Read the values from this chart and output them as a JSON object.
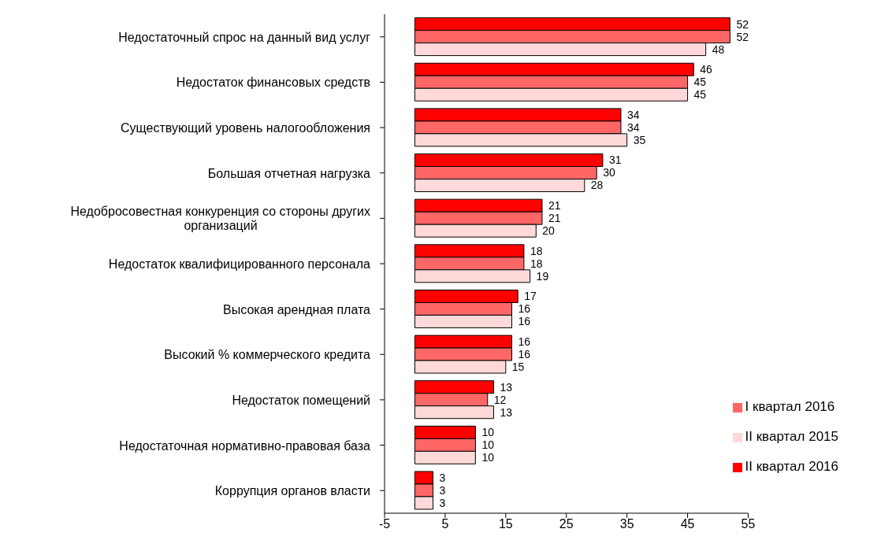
{
  "chart_data": {
    "type": "bar",
    "orientation": "horizontal",
    "categories": [
      "Недостаточный  спрос на данный вид услуг",
      "Недостаток финансовых средств",
      "Существующий уровень налогообложения",
      "Большая отчетная нагрузка",
      "Недобросовестная конкуренция со стороны других организаций",
      "Недостаток квалифицированного персонала",
      "Высокая арендная плата",
      "Высокий  % коммерческого кредита",
      "Недостаток   помещений",
      "Недостаточная нормативно-правовая база",
      "Коррупция органов власти"
    ],
    "series": [
      {
        "name": "II квартал 2016",
        "color": "#ff0000",
        "values": [
          52,
          46,
          34,
          31,
          21,
          18,
          17,
          16,
          13,
          10,
          3
        ]
      },
      {
        "name": "I квартал 2016",
        "color": "#ff6666",
        "values": [
          52,
          45,
          34,
          30,
          21,
          18,
          16,
          16,
          12,
          10,
          3
        ]
      },
      {
        "name": "II квартал 2015",
        "color": "#ffd9d9",
        "values": [
          48,
          45,
          35,
          28,
          20,
          19,
          16,
          15,
          13,
          10,
          3
        ]
      }
    ],
    "xlim": [
      -5,
      55
    ],
    "xticks": [
      -5,
      5,
      15,
      25,
      35,
      45,
      55
    ],
    "data_labels": true,
    "grid": false,
    "legend": "bottom right"
  }
}
